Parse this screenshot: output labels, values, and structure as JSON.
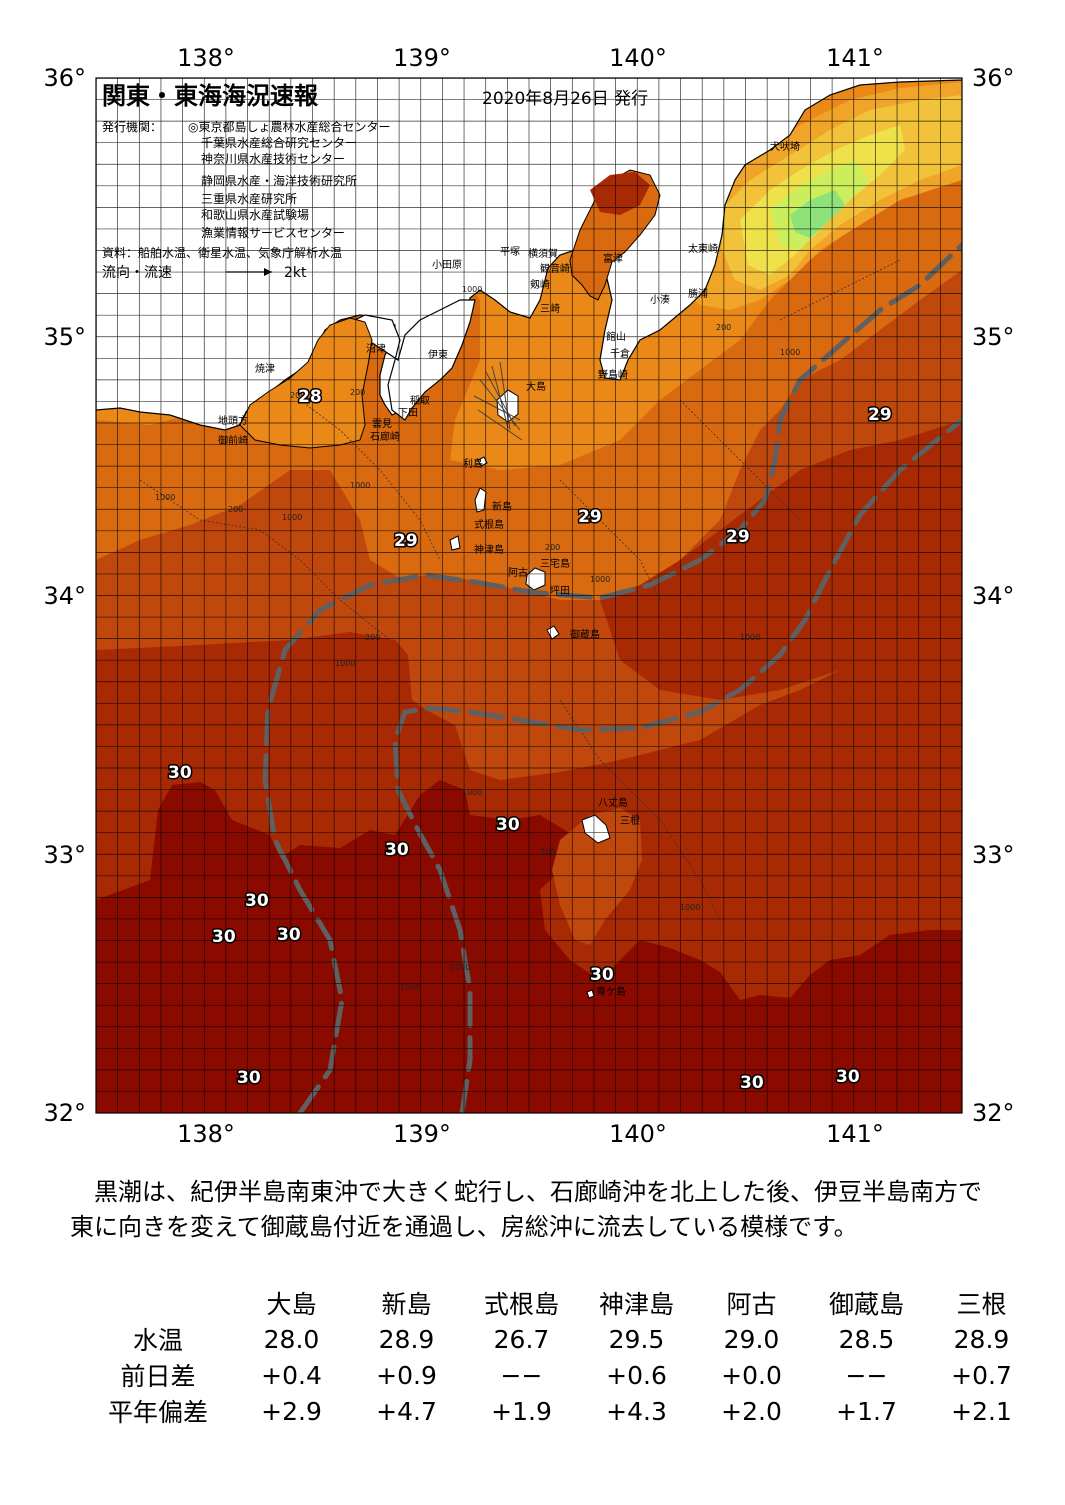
{
  "header": {
    "title": "関東・東海海況速報",
    "issue_date": "2020年8月26日 発行",
    "issuer_label": "発行機関：",
    "issuers": [
      "◎東京都島しょ農林水産総合センター",
      "千葉県水産総合研究センター",
      "神奈川県水産技術センター",
      "静岡県水産・海洋技術研究所",
      "三重県水産研究所",
      "和歌山県水産試験場",
      "漁業情報サービスセンター"
    ],
    "source": "資料：船舶水温、衛星水温、気象庁解析水温",
    "flow_label": "流向・流速",
    "flow_scale": "2kt"
  },
  "map": {
    "lon_labels": [
      "138°",
      "139°",
      "140°",
      "141°"
    ],
    "lat_labels": [
      "36°",
      "35°",
      "34°",
      "33°",
      "32°"
    ],
    "colors": {
      "sea_30": "#8b0a00",
      "sea_29_5": "#a82a05",
      "sea_29": "#c0480c",
      "sea_28_5": "#da6a10",
      "sea_28": "#ea8818",
      "sea_27": "#f0a428",
      "sea_26": "#f2c23a",
      "sea_25": "#eee14a",
      "sea_23": "#cdee5c",
      "sea_22": "#8ee27a",
      "land": "#ffffff",
      "kuroshio_axis": "#606060"
    },
    "place_names": [
      "犬吠埼",
      "太東崎",
      "勝浦",
      "小湊",
      "富津",
      "館山",
      "千倉",
      "野島崎",
      "横須賀",
      "観音崎",
      "剱崎",
      "三崎",
      "平塚",
      "小田原",
      "沼津",
      "伊東",
      "稲取",
      "下田",
      "大島",
      "焼津",
      "地頭方",
      "御前崎",
      "雲見",
      "石廊崎",
      "利島",
      "新島",
      "式根島",
      "神津島",
      "三宅島",
      "阿古",
      "坪田",
      "御蔵島",
      "八丈島",
      "三根",
      "青ケ島"
    ],
    "temp_labels": [
      "28",
      "29",
      "29",
      "29",
      "29",
      "30",
      "30",
      "30",
      "30",
      "30",
      "30",
      "30",
      "30",
      "30",
      "30"
    ],
    "contour_labels": [
      "1000",
      "200",
      "200",
      "1000",
      "200",
      "1000",
      "1000",
      "200",
      "200",
      "1000",
      "200",
      "1000",
      "1000",
      "1000",
      "1000",
      "1000",
      "1000",
      "200",
      "1000"
    ]
  },
  "summary": "　黒潮は、紀伊半島南東沖で大きく蛇行し、石廊崎沖を北上した後、伊豆半島南方で東に向きを変えて御蔵島付近を通過し、房総沖に流去している模様です。",
  "table": {
    "stations": [
      "大島",
      "新島",
      "式根島",
      "神津島",
      "阿古",
      "御蔵島",
      "三根"
    ],
    "rows": [
      {
        "label": "水温",
        "values": [
          "28.0",
          "28.9",
          "26.7",
          "29.5",
          "29.0",
          "28.5",
          "28.9"
        ]
      },
      {
        "label": "前日差",
        "values": [
          "+0.4",
          "+0.9",
          "−−",
          "+0.6",
          "+0.0",
          "−−",
          "+0.7"
        ]
      },
      {
        "label": "平年偏差",
        "values": [
          "+2.9",
          "+4.7",
          "+1.9",
          "+4.3",
          "+2.0",
          "+1.7",
          "+2.1"
        ]
      }
    ]
  }
}
